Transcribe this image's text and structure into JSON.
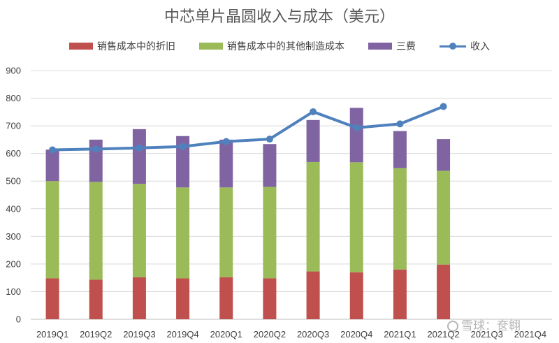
{
  "colors": {
    "depreciation": "#C0504D",
    "other_cost": "#9BBB59",
    "expenses": "#8064A2",
    "revenue": "#4F81BD",
    "grid": "#D9D9D9",
    "axis_text": "#404040"
  },
  "watermark": "雪球：奁翱",
  "chart_data": {
    "type": "bar",
    "title": "中芯单片晶圆收入与成本（美元）",
    "xlabel": "",
    "ylabel": "",
    "ylim": [
      0,
      900
    ],
    "yticks": [
      0,
      100,
      200,
      300,
      400,
      500,
      600,
      700,
      800,
      900
    ],
    "grid": true,
    "legend_position": "top",
    "categories": [
      "2019Q1",
      "2019Q2",
      "2019Q3",
      "2019Q4",
      "2020Q1",
      "2020Q2",
      "2020Q3",
      "2020Q4",
      "2021Q1",
      "2021Q2",
      "2021Q3",
      "2021Q4"
    ],
    "series": [
      {
        "name": "销售成本中的折旧",
        "type": "stacked-bar",
        "color": "#C0504D",
        "values": [
          148,
          143,
          152,
          148,
          152,
          148,
          173,
          170,
          180,
          198,
          null,
          null
        ]
      },
      {
        "name": "销售成本中的其他制造成本",
        "type": "stacked-bar",
        "color": "#9BBB59",
        "values": [
          352,
          354,
          338,
          329,
          325,
          331,
          396,
          398,
          367,
          339,
          null,
          null
        ]
      },
      {
        "name": "三费",
        "type": "stacked-bar",
        "color": "#8064A2",
        "values": [
          114,
          153,
          198,
          186,
          173,
          155,
          152,
          197,
          134,
          115,
          null,
          null
        ]
      },
      {
        "name": "收入",
        "type": "line",
        "color": "#4F81BD",
        "values": [
          613,
          616,
          620,
          625,
          643,
          652,
          751,
          693,
          707,
          770,
          null,
          null
        ]
      }
    ]
  }
}
